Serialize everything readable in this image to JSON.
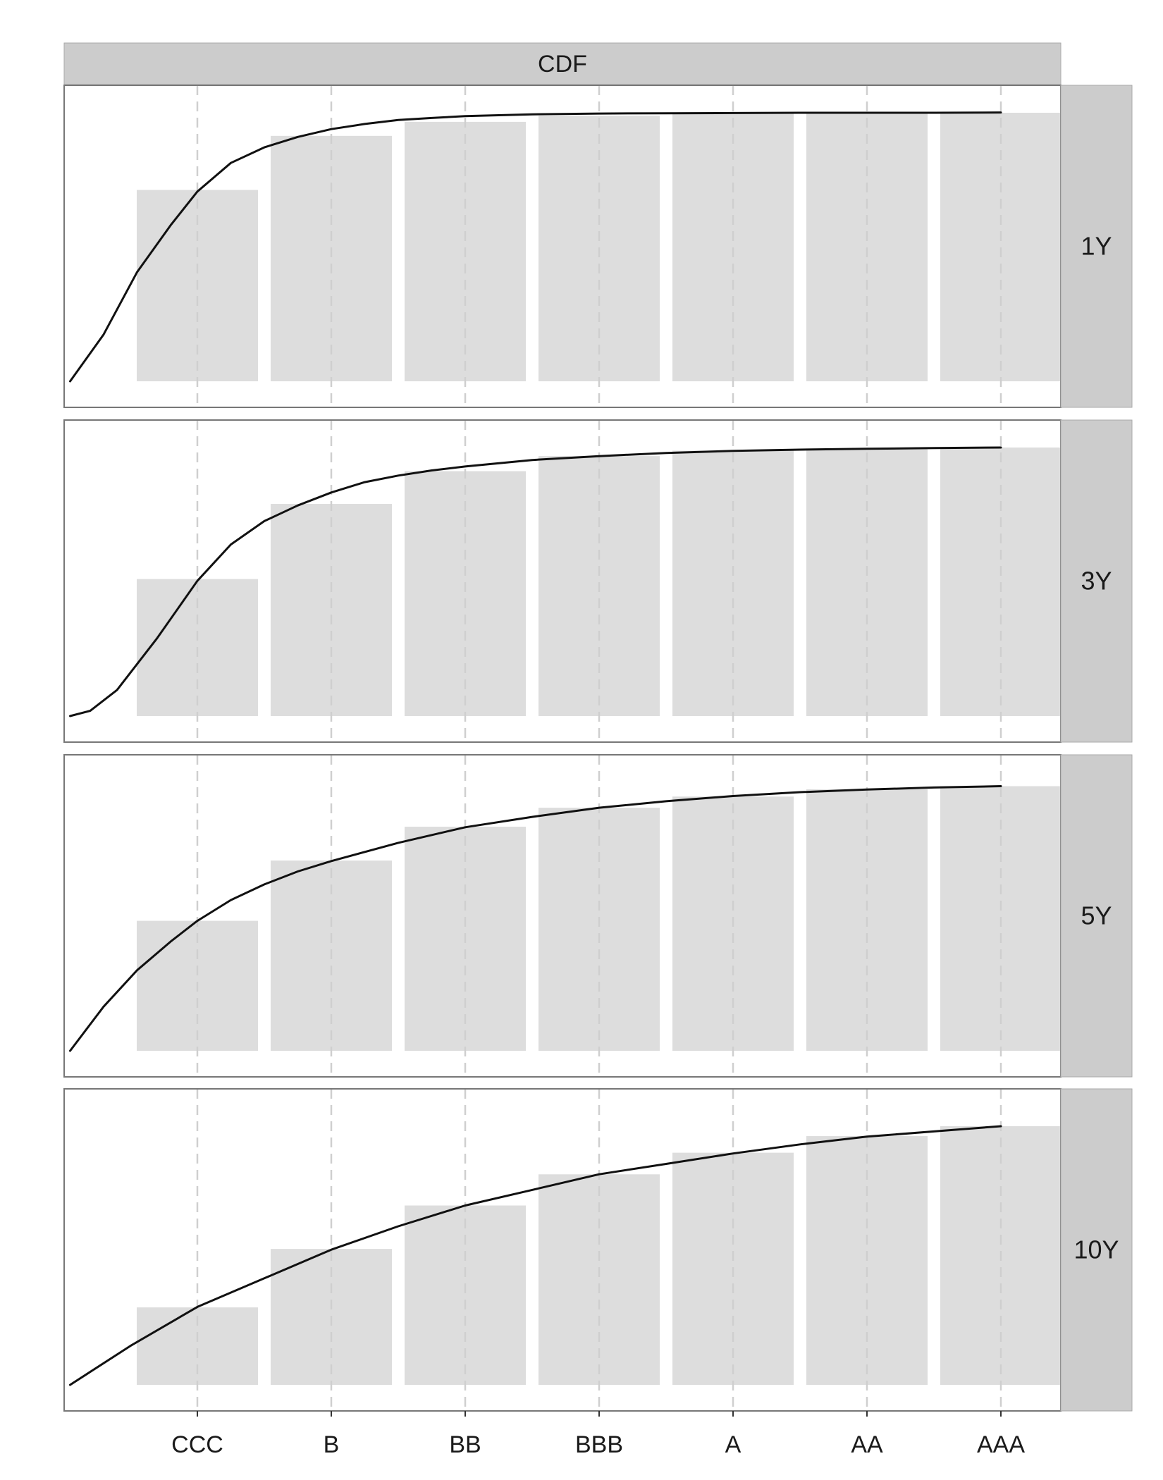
{
  "chart_data": {
    "type": "bar",
    "title": "",
    "column_strip": "CDF",
    "categories": [
      "CCC",
      "B",
      "BB",
      "BBB",
      "A",
      "AA",
      "AAA"
    ],
    "ylim": [
      0,
      1.1
    ],
    "grid": "vertical-dashed",
    "colors": {
      "bar": "#dddddd",
      "curve": "#111111",
      "strip": "#cccccc",
      "panel_border": "#777777",
      "gridline": "#cfcfcf"
    },
    "panels": [
      {
        "label": "1Y",
        "bars": [
          0.736,
          0.944,
          0.998,
          1.022,
          1.029,
          1.032,
          1.033
        ],
        "curve_x": [
          -0.95,
          -0.7,
          -0.45,
          -0.2,
          0,
          0.25,
          0.5,
          0.75,
          1,
          1.25,
          1.5,
          1.75,
          2,
          2.5,
          3,
          3.5,
          4,
          4.5,
          5,
          5.5,
          6
        ],
        "curve_y": [
          0,
          0.18,
          0.42,
          0.6,
          0.73,
          0.84,
          0.9,
          0.94,
          0.97,
          0.99,
          1.005,
          1.013,
          1.02,
          1.027,
          1.03,
          1.031,
          1.032,
          1.033,
          1.033,
          1.033,
          1.034
        ]
      },
      {
        "label": "3Y",
        "bars": [
          0.527,
          0.816,
          0.942,
          1.0,
          1.021,
          1.029,
          1.033
        ],
        "curve_x": [
          -0.95,
          -0.8,
          -0.6,
          -0.3,
          0,
          0.25,
          0.5,
          0.75,
          1,
          1.25,
          1.5,
          1.75,
          2,
          2.5,
          3,
          3.5,
          4,
          4.5,
          5,
          5.5,
          6
        ],
        "curve_y": [
          0,
          0.02,
          0.1,
          0.3,
          0.52,
          0.66,
          0.75,
          0.81,
          0.86,
          0.9,
          0.925,
          0.945,
          0.96,
          0.985,
          1.0,
          1.012,
          1.02,
          1.025,
          1.028,
          1.031,
          1.033
        ]
      },
      {
        "label": "5Y",
        "bars": [
          0.5,
          0.732,
          0.862,
          0.935,
          0.978,
          1.006,
          1.018
        ],
        "curve_x": [
          -0.95,
          -0.7,
          -0.45,
          -0.2,
          0,
          0.25,
          0.5,
          0.75,
          1,
          1.5,
          2,
          2.5,
          3,
          3.5,
          4,
          4.5,
          5,
          5.5,
          6
        ],
        "curve_y": [
          0,
          0.17,
          0.31,
          0.42,
          0.5,
          0.58,
          0.64,
          0.69,
          0.73,
          0.8,
          0.86,
          0.9,
          0.935,
          0.96,
          0.98,
          0.995,
          1.005,
          1.013,
          1.018
        ]
      },
      {
        "label": "10Y",
        "bars": [
          0.298,
          0.523,
          0.69,
          0.81,
          0.893,
          0.957,
          0.995
        ],
        "curve_x": [
          -0.95,
          -0.5,
          0,
          0.5,
          1,
          1.5,
          2,
          2.5,
          3,
          3.5,
          4,
          4.5,
          5,
          5.5,
          6
        ],
        "curve_y": [
          0,
          0.15,
          0.3,
          0.41,
          0.52,
          0.61,
          0.69,
          0.75,
          0.81,
          0.85,
          0.89,
          0.925,
          0.955,
          0.975,
          0.995
        ]
      }
    ]
  }
}
